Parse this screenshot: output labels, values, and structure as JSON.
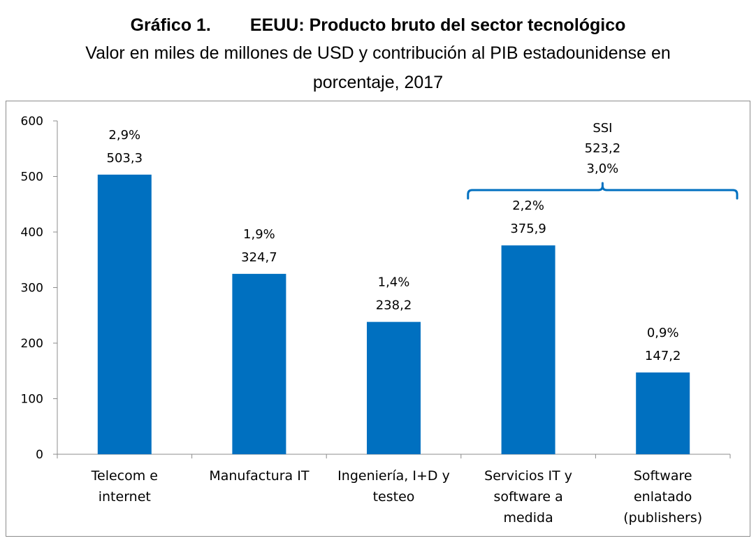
{
  "header": {
    "figure_number": "Gráfico 1.",
    "title": "EEUU: Producto bruto del sector tecnológico",
    "subtitle_line1": "Valor en miles de millones de USD y contribución al PIB estadounidense en",
    "subtitle_line2": "porcentaje, 2017"
  },
  "colors": {
    "bar": "#0070C0",
    "bracket": "#0070C0",
    "axis": "#8c8c8c"
  },
  "chart_data": {
    "type": "bar",
    "title": "EEUU: Producto bruto del sector tecnológico",
    "subtitle": "Valor en miles de millones de USD y contribución al PIB estadounidense en porcentaje, 2017",
    "xlabel": "",
    "ylabel": "",
    "ylim": [
      0,
      600
    ],
    "yticks": [
      "0",
      "100",
      "200",
      "300",
      "400",
      "500",
      "600"
    ],
    "grid": false,
    "categories": [
      [
        "Telecom e",
        "internet"
      ],
      [
        "Manufactura IT"
      ],
      [
        "Ingeniería, I+D y",
        "testeo"
      ],
      [
        "Servicios IT y",
        "software a",
        "medida"
      ],
      [
        "Software",
        "enlatado",
        "(publishers)"
      ]
    ],
    "values": [
      503.3,
      324.7,
      238.2,
      375.9,
      147.2
    ],
    "value_labels": [
      "503,3",
      "324,7",
      "238,2",
      "375,9",
      "147,2"
    ],
    "pct_labels": [
      "2,9%",
      "1,9%",
      "1,4%",
      "2,2%",
      "0,9%"
    ],
    "annotation": {
      "group_categories": [
        3,
        4
      ],
      "lines": [
        "SSI",
        "523,2",
        "3,0%"
      ]
    }
  }
}
